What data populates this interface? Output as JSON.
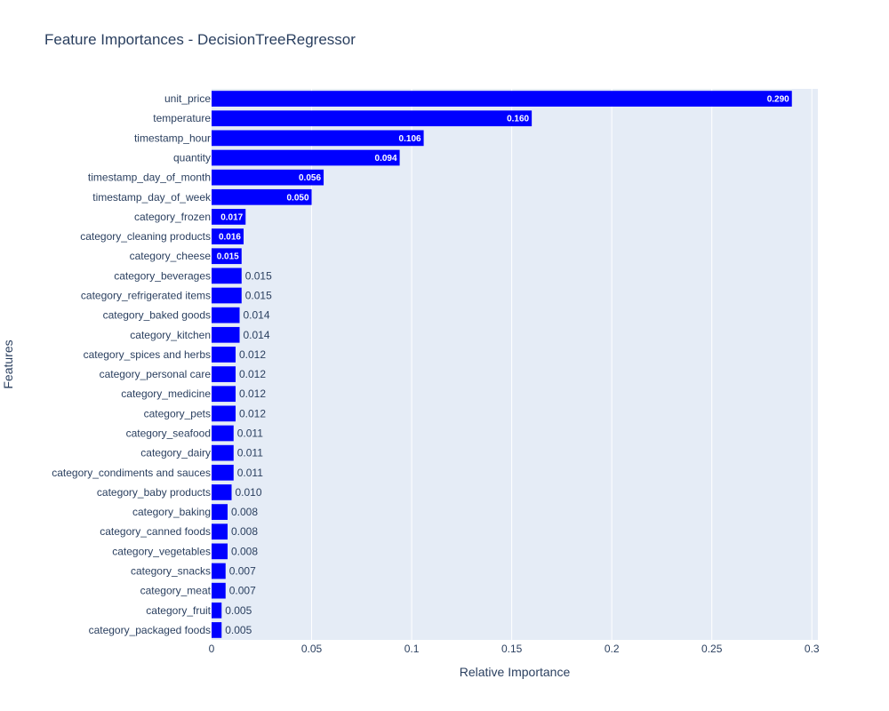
{
  "chart_data": {
    "type": "bar",
    "orientation": "horizontal",
    "title": "Feature Importances - DecisionTreeRegressor",
    "xlabel": "Relative Importance",
    "ylabel": "Features",
    "xlim": [
      0,
      0.303
    ],
    "x_ticks": [
      {
        "value": 0,
        "label": "0"
      },
      {
        "value": 0.05,
        "label": "0.05"
      },
      {
        "value": 0.1,
        "label": "0.1"
      },
      {
        "value": 0.15,
        "label": "0.15"
      },
      {
        "value": 0.2,
        "label": "0.2"
      },
      {
        "value": 0.25,
        "label": "0.25"
      },
      {
        "value": 0.3,
        "label": "0.3"
      }
    ],
    "grid": true,
    "bar_color": "#0000ff",
    "plot_background": "#e5ecf6",
    "categories": [
      "unit_price",
      "temperature",
      "timestamp_hour",
      "quantity",
      "timestamp_day_of_month",
      "timestamp_day_of_week",
      "category_frozen",
      "category_cleaning products",
      "category_cheese",
      "category_beverages",
      "category_refrigerated items",
      "category_baked goods",
      "category_kitchen",
      "category_spices and herbs",
      "category_personal care",
      "category_medicine",
      "category_pets",
      "category_seafood",
      "category_dairy",
      "category_condiments and sauces",
      "category_baby products",
      "category_baking",
      "category_canned foods",
      "category_vegetables",
      "category_snacks",
      "category_meat",
      "category_fruit",
      "category_packaged foods"
    ],
    "values": [
      0.29,
      0.16,
      0.106,
      0.094,
      0.056,
      0.05,
      0.017,
      0.016,
      0.015,
      0.015,
      0.015,
      0.014,
      0.014,
      0.012,
      0.012,
      0.012,
      0.012,
      0.011,
      0.011,
      0.011,
      0.01,
      0.008,
      0.008,
      0.008,
      0.007,
      0.007,
      0.005,
      0.005
    ],
    "value_labels": [
      "0.290",
      "0.160",
      "0.106",
      "0.094",
      "0.056",
      "0.050",
      "0.017",
      "0.016",
      "0.015",
      "0.015",
      "0.015",
      "0.014",
      "0.014",
      "0.012",
      "0.012",
      "0.012",
      "0.012",
      "0.011",
      "0.011",
      "0.011",
      "0.010",
      "0.008",
      "0.008",
      "0.008",
      "0.007",
      "0.007",
      "0.005",
      "0.005"
    ],
    "labels_inside": 9
  }
}
